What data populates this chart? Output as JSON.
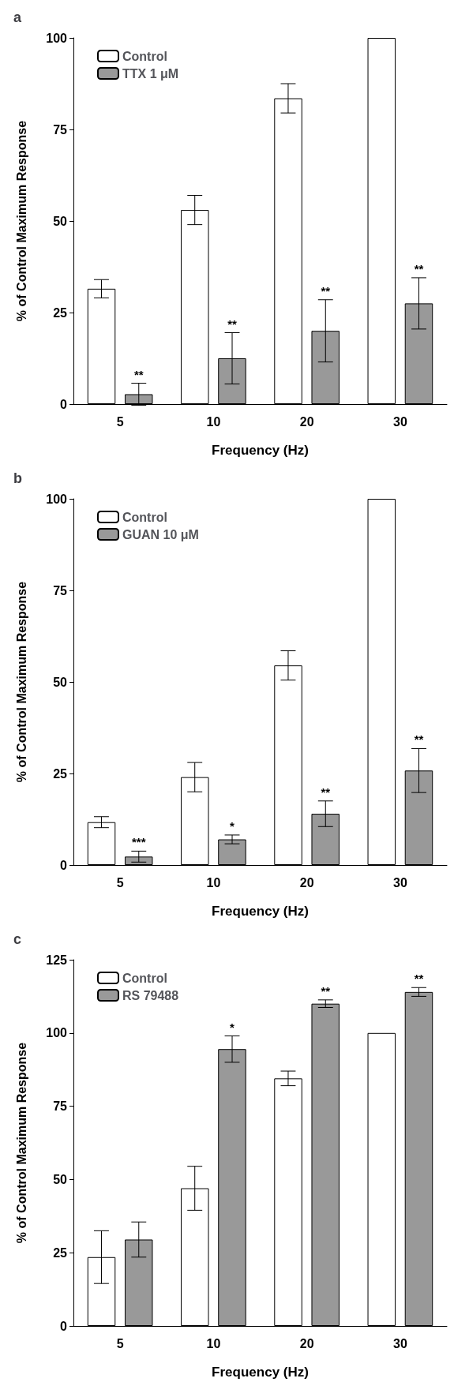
{
  "chart_data": [
    {
      "type": "bar",
      "title": "a",
      "xlabel": "Frequency (Hz)",
      "ylabel": "% of Control Maximum Response",
      "categories": [
        "5",
        "10",
        "20",
        "30"
      ],
      "ylim": [
        0,
        100
      ],
      "yticks": [
        0,
        25,
        50,
        75,
        100
      ],
      "grid": false,
      "legend": "top left",
      "series": [
        {
          "name": "Control",
          "color": "#ffffff",
          "values": [
            31.5,
            53,
            83.5,
            100
          ],
          "errors": [
            2.5,
            4,
            4,
            null
          ]
        },
        {
          "name": "TTX 1 μM",
          "color": "#999999",
          "values": [
            2.7,
            12.5,
            20,
            27.5
          ],
          "errors": [
            3,
            7,
            8.5,
            7
          ]
        }
      ],
      "annotations": [
        "**",
        "**",
        "**",
        "**"
      ]
    },
    {
      "type": "bar",
      "title": "b",
      "xlabel": "Frequency (Hz)",
      "ylabel": "% of Control Maximum Response",
      "categories": [
        "5",
        "10",
        "20",
        "30"
      ],
      "ylim": [
        0,
        100
      ],
      "yticks": [
        0,
        25,
        50,
        75,
        100
      ],
      "grid": false,
      "legend": "top left",
      "series": [
        {
          "name": "Control",
          "color": "#ffffff",
          "values": [
            11.7,
            24,
            54.5,
            100
          ],
          "errors": [
            1.5,
            4,
            4,
            null
          ]
        },
        {
          "name": "GUAN 10 μM",
          "color": "#999999",
          "values": [
            2.3,
            7,
            14,
            25.8
          ],
          "errors": [
            1.5,
            1.2,
            3.5,
            6
          ]
        }
      ],
      "annotations": [
        "***",
        "*",
        "**",
        "**"
      ]
    },
    {
      "type": "bar",
      "title": "c",
      "xlabel": "Frequency (Hz)",
      "ylabel": "% of Control Maximum Response",
      "categories": [
        "5",
        "10",
        "20",
        "30"
      ],
      "ylim": [
        0,
        125
      ],
      "yticks": [
        0,
        25,
        50,
        75,
        100,
        125
      ],
      "grid": false,
      "legend": "top left",
      "series": [
        {
          "name": "Control",
          "color": "#ffffff",
          "values": [
            23.5,
            47,
            84.5,
            100
          ],
          "errors": [
            9,
            7.5,
            2.5,
            null
          ]
        },
        {
          "name": "RS 79488",
          "color": "#999999",
          "values": [
            29.5,
            94.5,
            110,
            114
          ],
          "errors": [
            6,
            4.5,
            1.3,
            1.5
          ]
        }
      ],
      "annotations": [
        "*",
        "**",
        "**"
      ]
    }
  ]
}
